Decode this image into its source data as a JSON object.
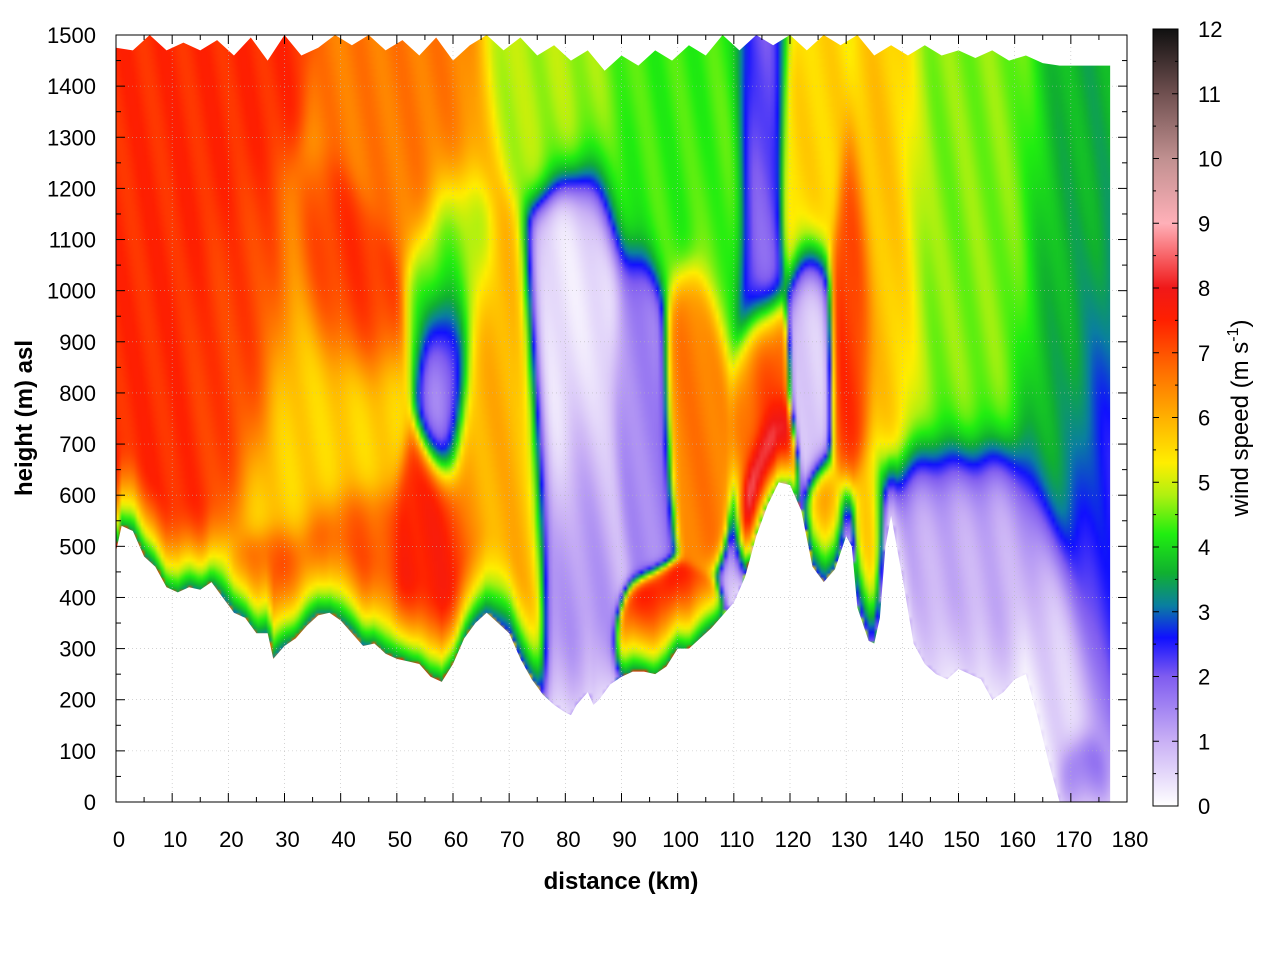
{
  "chart_data": {
    "type": "heatmap",
    "title": "",
    "xlabel": "distance (km)",
    "ylabel": "height (m) asl",
    "xlim": [
      0,
      180
    ],
    "ylim": [
      0,
      1500
    ],
    "xticks": [
      0,
      10,
      20,
      30,
      40,
      50,
      60,
      70,
      80,
      90,
      100,
      110,
      120,
      130,
      140,
      150,
      160,
      170,
      180
    ],
    "yticks": [
      0,
      100,
      200,
      300,
      400,
      500,
      600,
      700,
      800,
      900,
      1000,
      1100,
      1200,
      1300,
      1400,
      1500
    ],
    "grid": true,
    "colorbar": {
      "label_main": "wind speed (m s",
      "label_sup": "-1",
      "label_end": ")",
      "range": [
        0,
        12
      ],
      "ticks": [
        0,
        1,
        2,
        3,
        4,
        5,
        6,
        7,
        8,
        9,
        10,
        11,
        12
      ],
      "colors": [
        {
          "v": 0,
          "c": "#ffffff"
        },
        {
          "v": 1,
          "c": "#c9b0f5"
        },
        {
          "v": 2,
          "c": "#7f5cf0"
        },
        {
          "v": 2.6,
          "c": "#1010ff"
        },
        {
          "v": 3.1,
          "c": "#0a7fa0"
        },
        {
          "v": 3.6,
          "c": "#10b030"
        },
        {
          "v": 4.2,
          "c": "#20ee10"
        },
        {
          "v": 4.8,
          "c": "#b0f010"
        },
        {
          "v": 5.3,
          "c": "#ffee00"
        },
        {
          "v": 6,
          "c": "#ffb000"
        },
        {
          "v": 6.7,
          "c": "#ff7000"
        },
        {
          "v": 7.5,
          "c": "#ff2000"
        },
        {
          "v": 8,
          "c": "#f01818"
        },
        {
          "v": 9,
          "c": "#ffb0b8"
        },
        {
          "v": 10,
          "c": "#c09090"
        },
        {
          "v": 11,
          "c": "#705050"
        },
        {
          "v": 12,
          "c": "#101010"
        }
      ]
    },
    "terrain": [
      [
        0,
        490
      ],
      [
        1,
        540
      ],
      [
        3,
        530
      ],
      [
        5,
        480
      ],
      [
        7,
        460
      ],
      [
        9,
        420
      ],
      [
        11,
        410
      ],
      [
        13,
        420
      ],
      [
        15,
        415
      ],
      [
        17,
        430
      ],
      [
        19,
        400
      ],
      [
        21,
        370
      ],
      [
        23,
        360
      ],
      [
        25,
        330
      ],
      [
        27,
        330
      ],
      [
        28,
        280
      ],
      [
        30,
        305
      ],
      [
        32,
        320
      ],
      [
        34,
        345
      ],
      [
        36,
        365
      ],
      [
        38,
        370
      ],
      [
        40,
        355
      ],
      [
        42,
        330
      ],
      [
        44,
        305
      ],
      [
        46,
        310
      ],
      [
        48,
        290
      ],
      [
        50,
        280
      ],
      [
        52,
        275
      ],
      [
        54,
        270
      ],
      [
        56,
        245
      ],
      [
        58,
        235
      ],
      [
        60,
        270
      ],
      [
        62,
        320
      ],
      [
        64,
        350
      ],
      [
        66,
        370
      ],
      [
        68,
        350
      ],
      [
        70,
        330
      ],
      [
        72,
        280
      ],
      [
        74,
        240
      ],
      [
        76,
        210
      ],
      [
        78,
        190
      ],
      [
        80,
        175
      ],
      [
        81,
        170
      ],
      [
        82,
        190
      ],
      [
        84,
        215
      ],
      [
        85,
        190
      ],
      [
        86,
        200
      ],
      [
        88,
        230
      ],
      [
        90,
        245
      ],
      [
        92,
        255
      ],
      [
        94,
        255
      ],
      [
        96,
        250
      ],
      [
        98,
        265
      ],
      [
        100,
        300
      ],
      [
        102,
        300
      ],
      [
        104,
        320
      ],
      [
        106,
        340
      ],
      [
        108,
        365
      ],
      [
        110,
        390
      ],
      [
        112,
        440
      ],
      [
        114,
        520
      ],
      [
        116,
        580
      ],
      [
        118,
        625
      ],
      [
        120,
        620
      ],
      [
        122,
        570
      ],
      [
        124,
        460
      ],
      [
        126,
        430
      ],
      [
        128,
        455
      ],
      [
        130,
        520
      ],
      [
        131,
        500
      ],
      [
        132,
        380
      ],
      [
        134,
        315
      ],
      [
        135,
        310
      ],
      [
        136,
        360
      ],
      [
        137,
        500
      ],
      [
        138,
        560
      ],
      [
        140,
        440
      ],
      [
        142,
        310
      ],
      [
        144,
        270
      ],
      [
        146,
        250
      ],
      [
        148,
        240
      ],
      [
        150,
        260
      ],
      [
        152,
        250
      ],
      [
        154,
        240
      ],
      [
        156,
        200
      ],
      [
        158,
        215
      ],
      [
        160,
        240
      ],
      [
        162,
        250
      ],
      [
        164,
        170
      ],
      [
        166,
        80
      ],
      [
        168,
        0
      ],
      [
        177,
        0
      ],
      [
        177,
        1440
      ],
      [
        168,
        1440
      ]
    ],
    "top_edge": [
      [
        0,
        1475
      ],
      [
        3,
        1470
      ],
      [
        6,
        1500
      ],
      [
        9,
        1470
      ],
      [
        12,
        1485
      ],
      [
        15,
        1470
      ],
      [
        18,
        1490
      ],
      [
        21,
        1460
      ],
      [
        24,
        1495
      ],
      [
        27,
        1450
      ],
      [
        30,
        1500
      ],
      [
        33,
        1460
      ],
      [
        36,
        1475
      ],
      [
        39,
        1500
      ],
      [
        42,
        1480
      ],
      [
        45,
        1500
      ],
      [
        48,
        1470
      ],
      [
        51,
        1490
      ],
      [
        54,
        1460
      ],
      [
        57,
        1495
      ],
      [
        60,
        1450
      ],
      [
        63,
        1480
      ],
      [
        66,
        1500
      ],
      [
        69,
        1470
      ],
      [
        72,
        1495
      ],
      [
        75,
        1460
      ],
      [
        78,
        1480
      ],
      [
        81,
        1450
      ],
      [
        84,
        1470
      ],
      [
        87,
        1430
      ],
      [
        90,
        1460
      ],
      [
        93,
        1440
      ],
      [
        96,
        1470
      ],
      [
        99,
        1450
      ],
      [
        102,
        1480
      ],
      [
        105,
        1460
      ],
      [
        108,
        1500
      ],
      [
        111,
        1470
      ],
      [
        114,
        1500
      ],
      [
        117,
        1480
      ],
      [
        120,
        1500
      ],
      [
        123,
        1470
      ],
      [
        126,
        1500
      ],
      [
        129,
        1480
      ],
      [
        132,
        1500
      ],
      [
        135,
        1460
      ],
      [
        138,
        1480
      ],
      [
        141,
        1460
      ],
      [
        144,
        1480
      ],
      [
        147,
        1460
      ],
      [
        150,
        1470
      ],
      [
        153,
        1455
      ],
      [
        156,
        1470
      ],
      [
        159,
        1450
      ],
      [
        162,
        1460
      ],
      [
        165,
        1445
      ],
      [
        168,
        1440
      ],
      [
        177,
        1440
      ]
    ],
    "wind_centers": [
      {
        "x": 5,
        "y": 1180,
        "v": 7.4,
        "sx": 10,
        "sy": 280
      },
      {
        "x": 22,
        "y": 920,
        "v": 7.2,
        "sx": 6,
        "sy": 150
      },
      {
        "x": 40,
        "y": 990,
        "v": 7.4,
        "sx": 5,
        "sy": 110
      },
      {
        "x": 55,
        "y": 1320,
        "v": 6.6,
        "sx": 7,
        "sy": 140
      },
      {
        "x": 30,
        "y": 390,
        "v": 7.0,
        "sx": 4,
        "sy": 80
      },
      {
        "x": 40,
        "y": 470,
        "v": 7.0,
        "sx": 5,
        "sy": 90
      },
      {
        "x": 58,
        "y": 420,
        "v": 7.6,
        "sx": 4,
        "sy": 150
      },
      {
        "x": 35,
        "y": 780,
        "v": 5.6,
        "sx": 7,
        "sy": 180
      },
      {
        "x": 60,
        "y": 1050,
        "v": 4.5,
        "sx": 4,
        "sy": 150
      },
      {
        "x": 67,
        "y": 700,
        "v": 6.0,
        "sx": 5,
        "sy": 250
      },
      {
        "x": 78,
        "y": 1380,
        "v": 4.8,
        "sx": 8,
        "sy": 110
      },
      {
        "x": 100,
        "y": 1350,
        "v": 4.3,
        "sx": 10,
        "sy": 200
      },
      {
        "x": 59,
        "y": 850,
        "v": 1.2,
        "sx": 2.5,
        "sy": 130
      },
      {
        "x": 82,
        "y": 870,
        "v": 0.3,
        "sx": 5,
        "sy": 230
      },
      {
        "x": 83,
        "y": 550,
        "v": 1.3,
        "sx": 3,
        "sy": 220
      },
      {
        "x": 93,
        "y": 820,
        "v": 1.5,
        "sx": 3,
        "sy": 150
      },
      {
        "x": 97,
        "y": 320,
        "v": 7.6,
        "sx": 3.5,
        "sy": 50
      },
      {
        "x": 103,
        "y": 850,
        "v": 6.6,
        "sx": 3,
        "sy": 120
      },
      {
        "x": 108,
        "y": 1200,
        "v": 4.4,
        "sx": 3,
        "sy": 180
      },
      {
        "x": 114,
        "y": 1280,
        "v": 1.8,
        "sx": 2.5,
        "sy": 280
      },
      {
        "x": 117,
        "y": 630,
        "v": 9.5,
        "sx": 2.2,
        "sy": 90
      },
      {
        "x": 115,
        "y": 820,
        "v": 7.2,
        "sx": 2.5,
        "sy": 100
      },
      {
        "x": 124,
        "y": 880,
        "v": 0.6,
        "sx": 2.2,
        "sy": 150
      },
      {
        "x": 124,
        "y": 1250,
        "v": 5.6,
        "sx": 3,
        "sy": 150
      },
      {
        "x": 126,
        "y": 520,
        "v": 6.2,
        "sx": 2,
        "sy": 80
      },
      {
        "x": 131,
        "y": 930,
        "v": 7.4,
        "sx": 2.5,
        "sy": 180
      },
      {
        "x": 134,
        "y": 450,
        "v": 6.2,
        "sx": 1.8,
        "sy": 140
      },
      {
        "x": 138,
        "y": 1050,
        "v": 6.0,
        "sx": 4,
        "sy": 240
      },
      {
        "x": 150,
        "y": 1050,
        "v": 4.6,
        "sx": 10,
        "sy": 250
      },
      {
        "x": 150,
        "y": 400,
        "v": 1.0,
        "sx": 12,
        "sy": 180
      },
      {
        "x": 166,
        "y": 200,
        "v": 0.5,
        "sx": 5,
        "sy": 200
      },
      {
        "x": 170,
        "y": 900,
        "v": 3.6,
        "sx": 6,
        "sy": 300
      },
      {
        "x": 175,
        "y": 650,
        "v": 2.4,
        "sx": 4,
        "sy": 250
      },
      {
        "x": 171,
        "y": 40,
        "v": 2.5,
        "sx": 2.5,
        "sy": 60
      }
    ]
  }
}
